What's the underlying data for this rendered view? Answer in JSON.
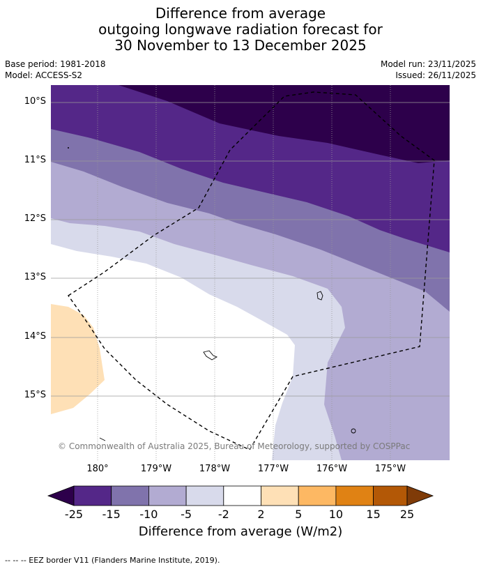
{
  "title": {
    "line1": "Difference from average",
    "line2": "outgoing longwave radiation forecast for",
    "line3": "30 November to 13 December 2025"
  },
  "meta": {
    "base_period": "Base period: 1981-2018",
    "model": "Model: ACCESS-S2",
    "model_run": "Model run: 23/11/2025",
    "issued": "Issued: 26/11/2025"
  },
  "axes": {
    "lat_labels": [
      "10°S",
      "11°S",
      "12°S",
      "13°S",
      "14°S",
      "15°S"
    ],
    "lon_labels": [
      "180°",
      "179°W",
      "178°W",
      "177°W",
      "176°W",
      "175°W"
    ]
  },
  "colorbar": {
    "ticks": [
      "-25",
      "-15",
      "-10",
      "-5",
      "-2",
      "2",
      "5",
      "10",
      "15",
      "25"
    ],
    "colors": [
      "#2d004b",
      "#542788",
      "#8073ac",
      "#b2abd2",
      "#d8daeb",
      "#ffffff",
      "#fee0b6",
      "#fdb863",
      "#e08214",
      "#b35806",
      "#7f3b08"
    ],
    "label": "Difference from average (W/m2)"
  },
  "copyright": "© Commonwealth of Australia 2025, Bureau of Meteorology, supported by COSPPac",
  "footer": "--  --  -- EEZ border V11 (Flanders Marine Institute, 2019)."
}
